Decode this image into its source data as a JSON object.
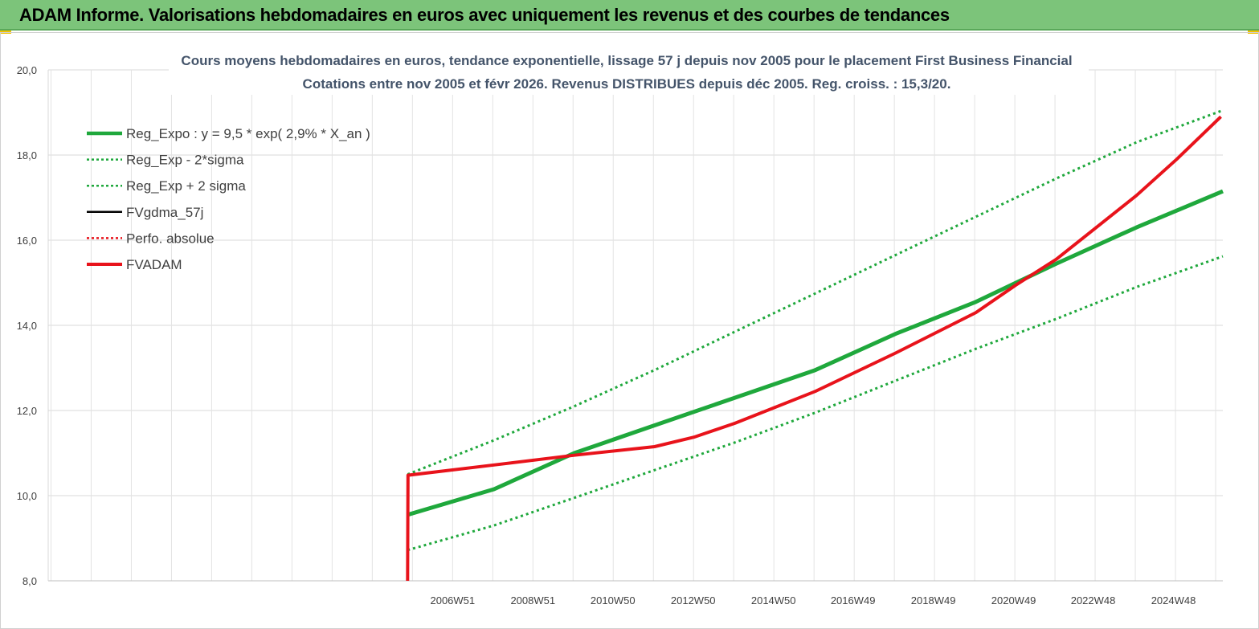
{
  "banner": {
    "title": "ADAM Informe. Valorisations hebdomadaires en euros avec uniquement les revenus et des courbes de tendances"
  },
  "chart_data": {
    "type": "line",
    "title": "Cours moyens hebdomadaires en euros, tendance exponentielle, lissage 57 j depuis nov 2005 pour le placement First Business Financial",
    "subtitle": "Cotations entre nov 2005 et févr 2026. Revenus DISTRIBUES depuis déc 2005. Reg. croiss. : 15,3/20.",
    "xlabel": "",
    "ylabel": "",
    "ylim": [
      8,
      20
    ],
    "yticks": [
      "8,0",
      "10,0",
      "12,0",
      "14,0",
      "16,0",
      "18,0",
      "20,0"
    ],
    "x_range": [
      1996.9,
      2026.15
    ],
    "xticks": [
      {
        "label": "2006W51",
        "year": 2006.97
      },
      {
        "label": "2008W51",
        "year": 2008.97
      },
      {
        "label": "2010W50",
        "year": 2010.96
      },
      {
        "label": "2012W50",
        "year": 2012.96
      },
      {
        "label": "2014W50",
        "year": 2014.96
      },
      {
        "label": "2016W49",
        "year": 2016.94
      },
      {
        "label": "2018W49",
        "year": 2018.94
      },
      {
        "label": "2020W49",
        "year": 2020.94
      },
      {
        "label": "2022W48",
        "year": 2022.92
      },
      {
        "label": "2024W48",
        "year": 2024.92
      }
    ],
    "grid": true,
    "legend_position": "top-left",
    "series": [
      {
        "name": "Reg_Expo : y = 9,5 * exp( 2,9% *  X_an )",
        "color": "#1fa83c",
        "style": "solid",
        "width": 5,
        "x": [
          2005.85,
          2008,
          2010,
          2012,
          2014,
          2016,
          2018,
          2020,
          2022,
          2024,
          2026.15
        ],
        "y": [
          9.55,
          10.15,
          11.0,
          11.65,
          12.3,
          12.95,
          13.8,
          14.55,
          15.45,
          16.3,
          17.15
        ]
      },
      {
        "name": "Reg_Exp - 2*sigma",
        "color": "#1fa83c",
        "style": "dotted",
        "width": 3,
        "x": [
          2005.85,
          2008,
          2010,
          2012,
          2014,
          2016,
          2018,
          2020,
          2022,
          2024,
          2026.15
        ],
        "y": [
          10.5,
          11.3,
          12.1,
          12.95,
          13.85,
          14.75,
          15.65,
          16.55,
          17.45,
          18.3,
          19.05
        ]
      },
      {
        "name": "Reg_Exp + 2 sigma",
        "color": "#1fa83c",
        "style": "dotted",
        "width": 3,
        "x": [
          2005.85,
          2008,
          2010,
          2012,
          2014,
          2016,
          2018,
          2020,
          2022,
          2024,
          2026.15
        ],
        "y": [
          8.72,
          9.3,
          9.95,
          10.6,
          11.25,
          11.95,
          12.7,
          13.45,
          14.15,
          14.9,
          15.62
        ]
      },
      {
        "name": "FVgdma_57j",
        "color": "#000000",
        "style": "solid",
        "width": 2.5,
        "x": [
          2005.85,
          2005.86,
          2008,
          2010,
          2012,
          2013,
          2014,
          2016,
          2018,
          2020,
          2021,
          2022,
          2023,
          2024,
          2025,
          2026.1
        ],
        "y": [
          8.0,
          10.48,
          10.72,
          10.95,
          11.15,
          11.38,
          11.7,
          12.45,
          13.35,
          14.3,
          14.95,
          15.55,
          16.3,
          17.05,
          17.9,
          18.9
        ]
      },
      {
        "name": "Perfo. absolue",
        "color": "#e8131b",
        "style": "dotted",
        "width": 2,
        "x": [
          2005.85,
          2005.86,
          2008,
          2010,
          2012,
          2013,
          2014,
          2016,
          2018,
          2020,
          2021,
          2022,
          2023,
          2024,
          2025,
          2026.1
        ],
        "y": [
          8.0,
          10.48,
          10.72,
          10.95,
          11.15,
          11.38,
          11.7,
          12.45,
          13.35,
          14.3,
          14.95,
          15.55,
          16.3,
          17.05,
          17.9,
          18.9
        ]
      },
      {
        "name": "FVADAM",
        "color": "#e8131b",
        "style": "solid",
        "width": 4,
        "x": [
          2005.85,
          2005.86,
          2008,
          2010,
          2012,
          2013,
          2014,
          2016,
          2018,
          2020,
          2021,
          2022,
          2023,
          2024,
          2025,
          2026.1
        ],
        "y": [
          8.0,
          10.48,
          10.72,
          10.95,
          11.15,
          11.38,
          11.7,
          12.45,
          13.35,
          14.3,
          14.95,
          15.55,
          16.3,
          17.05,
          17.9,
          18.9
        ]
      }
    ]
  }
}
